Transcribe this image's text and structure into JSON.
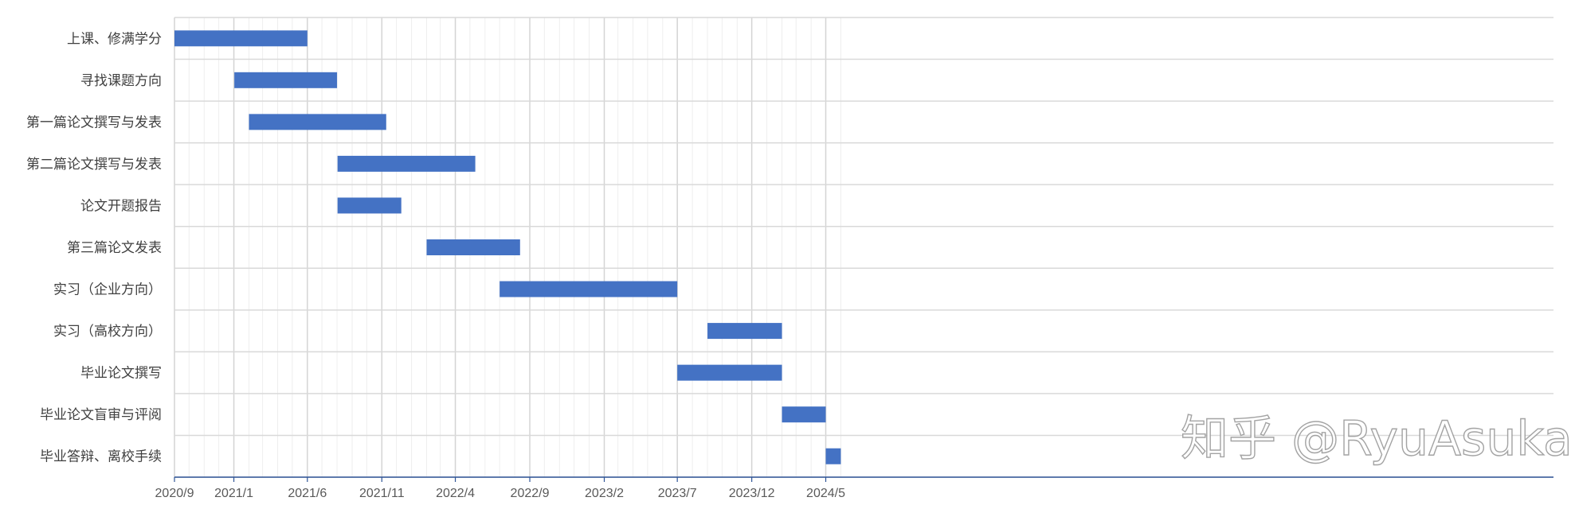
{
  "chart_data": {
    "type": "gantt",
    "categories": [
      "上课、修满学分",
      "寻找课题方向",
      "第一篇论文撰写与发表",
      "第二篇论文撰写与发表",
      "论文开题报告",
      "第三篇论文发表",
      "实习（企业方向）",
      "实习（高校方向）",
      "毕业论文撰写",
      "毕业论文盲审与评阅",
      "毕业答辩、离校手续"
    ],
    "tasks": [
      {
        "label": "上课、修满学分",
        "start": "2020-09-01",
        "end": "2021-06-01"
      },
      {
        "label": "寻找课题方向",
        "start": "2021-01-02",
        "end": "2021-08-01"
      },
      {
        "label": "第一篇论文撰写与发表",
        "start": "2021-02-01",
        "end": "2021-11-10"
      },
      {
        "label": "第二篇论文撰写与发表",
        "start": "2021-08-02",
        "end": "2022-05-12"
      },
      {
        "label": "论文开题报告",
        "start": "2021-08-02",
        "end": "2021-12-11"
      },
      {
        "label": "第三篇论文发表",
        "start": "2022-02-01",
        "end": "2022-08-12"
      },
      {
        "label": "实习（企业方向）",
        "start": "2022-07-01",
        "end": "2023-07-01"
      },
      {
        "label": "实习（高校方向）",
        "start": "2023-09-01",
        "end": "2024-02-01"
      },
      {
        "label": "毕业论文撰写",
        "start": "2023-07-01",
        "end": "2024-02-01"
      },
      {
        "label": "毕业论文盲审与评阅",
        "start": "2024-02-01",
        "end": "2024-05-01"
      },
      {
        "label": "毕业答辩、离校手续",
        "start": "2024-05-01",
        "end": "2024-06-01"
      }
    ],
    "x_ticks": [
      "2020/9",
      "2021/1",
      "2021/6",
      "2021/11",
      "2022/4",
      "2022/9",
      "2023/2",
      "2023/7",
      "2023/12",
      "2024/5"
    ],
    "x_range": [
      "2020-09-01",
      "2024-06-15"
    ],
    "bar_color": "#4472c4",
    "grid": true,
    "watermark": "知乎 @RyuAsuka"
  }
}
